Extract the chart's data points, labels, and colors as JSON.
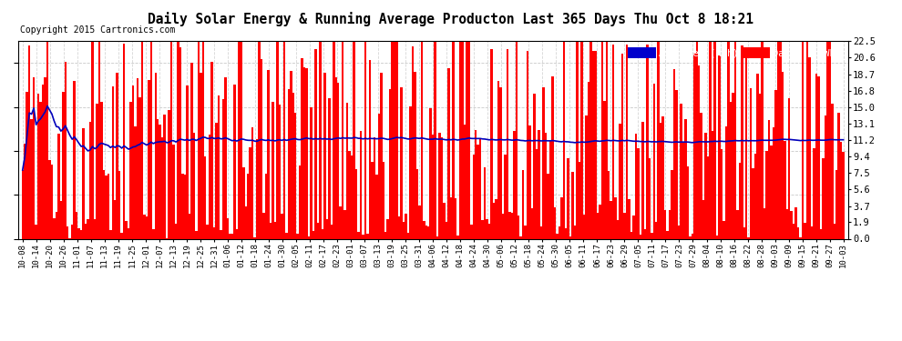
{
  "title": "Daily Solar Energy & Running Average Producton Last 365 Days Thu Oct 8 18:21",
  "copyright": "Copyright 2015 Cartronics.com",
  "ylabel_right_ticks": [
    0.0,
    1.9,
    3.7,
    5.6,
    7.5,
    9.4,
    11.2,
    13.1,
    15.0,
    16.8,
    18.7,
    20.6,
    22.5
  ],
  "ylim": [
    0.0,
    22.5
  ],
  "bar_color": "#FF0000",
  "avg_line_color": "#0000BB",
  "legend_avg_bg": "#0000CC",
  "legend_daily_bg": "#FF0000",
  "legend_text_color": "#FFFFFF",
  "title_color": "#000000",
  "bg_color": "#FFFFFF",
  "plot_bg_color": "#FFFFFF",
  "grid_color": "#AAAAAA",
  "n_days": 365,
  "xtick_labels": [
    "10-08",
    "10-14",
    "10-20",
    "10-26",
    "11-01",
    "11-07",
    "11-13",
    "11-19",
    "11-25",
    "12-01",
    "12-07",
    "12-13",
    "12-19",
    "12-25",
    "12-31",
    "01-06",
    "01-12",
    "01-18",
    "01-24",
    "01-30",
    "02-05",
    "02-11",
    "02-17",
    "02-23",
    "03-01",
    "03-07",
    "03-13",
    "03-19",
    "03-25",
    "03-31",
    "04-06",
    "04-12",
    "04-18",
    "04-24",
    "04-30",
    "05-06",
    "05-12",
    "05-18",
    "05-24",
    "05-30",
    "06-05",
    "06-11",
    "06-17",
    "06-23",
    "06-29",
    "07-05",
    "07-11",
    "07-17",
    "07-23",
    "07-29",
    "08-04",
    "08-10",
    "08-16",
    "08-22",
    "08-28",
    "09-03",
    "09-09",
    "09-15",
    "09-21",
    "09-27",
    "10-03"
  ]
}
